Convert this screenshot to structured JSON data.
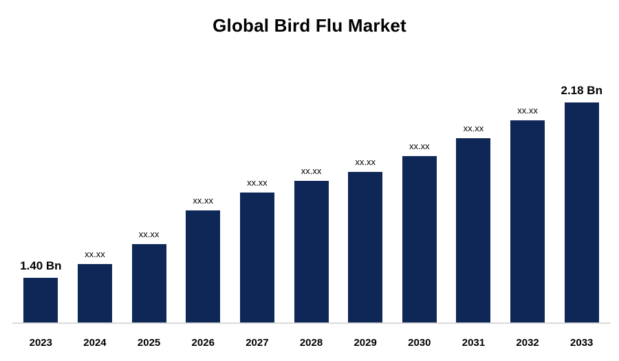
{
  "chart_data": {
    "type": "bar",
    "title": "Global Bird Flu Market",
    "categories": [
      "2023",
      "2024",
      "2025",
      "2026",
      "2027",
      "2028",
      "2029",
      "2030",
      "2031",
      "2032",
      "2033"
    ],
    "values": [
      1.4,
      1.46,
      1.55,
      1.7,
      1.78,
      1.83,
      1.87,
      1.94,
      2.02,
      2.1,
      2.18
    ],
    "bar_labels": [
      "1.40 Bn",
      "xx.xx",
      "xx.xx",
      "xx.xx",
      "xx.xx",
      "xx.xx",
      "xx.xx",
      "xx.xx",
      "xx.xx",
      "xx.xx",
      "2.18 Bn"
    ],
    "emphasized_labels": [
      0,
      10
    ],
    "unit": "Bn",
    "first_value_label": "1.40 Bn",
    "last_value_label": "2.18 Bn",
    "ylim": [
      1.2,
      2.25
    ],
    "bar_color": "#0e2757",
    "text_color": "#000000",
    "axis_line_color": "#d9d9d9",
    "grid": false,
    "legend": false,
    "y_axis_shown": false
  }
}
